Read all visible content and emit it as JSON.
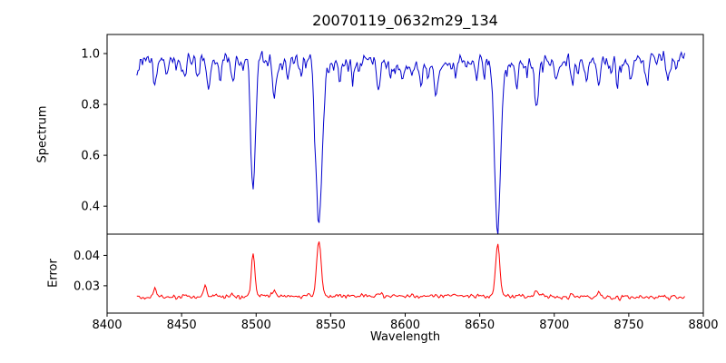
{
  "window": {
    "background": "#ffffff"
  },
  "chart_data": {
    "type": "line",
    "title": "20070119_0632m29_134",
    "xlabel": "Wavelength",
    "grid": false,
    "legend": null,
    "axis_color": "#000000",
    "xlim": [
      8400,
      8800
    ],
    "x_data_range": [
      8420,
      8788
    ],
    "x_ticks": {
      "values": [
        8400,
        8450,
        8500,
        8550,
        8600,
        8650,
        8700,
        8750,
        8800
      ],
      "labels": [
        "8400",
        "8450",
        "8500",
        "8550",
        "8600",
        "8650",
        "8700",
        "8750",
        "8800"
      ]
    },
    "seed": 20070119,
    "panels": [
      {
        "name": "spectrum",
        "ylabel": "Spectrum",
        "line_color": "#0000cd",
        "ylim": [
          0.29,
          1.075
        ],
        "y_ticks": {
          "values": [
            0.4,
            0.6,
            0.8,
            1.0
          ],
          "labels": [
            "0.4",
            "0.6",
            "0.8",
            "1.0"
          ]
        },
        "continuum_level": 0.965,
        "noise_sigma": 0.02,
        "absorption_lines": [
          {
            "center": 8498.0,
            "depth": 0.51,
            "width": 1.5
          },
          {
            "center": 8542.1,
            "depth": 0.64,
            "width": 2.2
          },
          {
            "center": 8662.1,
            "depth": 0.63,
            "width": 2.0
          },
          {
            "center": 8432,
            "depth": 0.1,
            "width": 1.0
          },
          {
            "center": 8440,
            "depth": 0.06,
            "width": 0.9
          },
          {
            "center": 8452,
            "depth": 0.08,
            "width": 0.9
          },
          {
            "center": 8461,
            "depth": 0.07,
            "width": 0.9
          },
          {
            "center": 8468,
            "depth": 0.11,
            "width": 1.0
          },
          {
            "center": 8476,
            "depth": 0.06,
            "width": 0.9
          },
          {
            "center": 8484,
            "depth": 0.07,
            "width": 0.9
          },
          {
            "center": 8512,
            "depth": 0.14,
            "width": 1.1
          },
          {
            "center": 8521,
            "depth": 0.07,
            "width": 0.9
          },
          {
            "center": 8530,
            "depth": 0.06,
            "width": 0.9
          },
          {
            "center": 8556,
            "depth": 0.07,
            "width": 0.9
          },
          {
            "center": 8565,
            "depth": 0.06,
            "width": 0.9
          },
          {
            "center": 8582,
            "depth": 0.09,
            "width": 1.0
          },
          {
            "center": 8590,
            "depth": 0.06,
            "width": 0.9
          },
          {
            "center": 8598,
            "depth": 0.08,
            "width": 0.9
          },
          {
            "center": 8611,
            "depth": 0.07,
            "width": 0.9
          },
          {
            "center": 8621,
            "depth": 0.1,
            "width": 1.0
          },
          {
            "center": 8634,
            "depth": 0.06,
            "width": 0.9
          },
          {
            "center": 8648,
            "depth": 0.08,
            "width": 0.9
          },
          {
            "center": 8674,
            "depth": 0.07,
            "width": 0.9
          },
          {
            "center": 8688,
            "depth": 0.18,
            "width": 1.2
          },
          {
            "center": 8702,
            "depth": 0.06,
            "width": 0.9
          },
          {
            "center": 8712,
            "depth": 0.09,
            "width": 1.0
          },
          {
            "center": 8722,
            "depth": 0.06,
            "width": 0.9
          },
          {
            "center": 8730,
            "depth": 0.1,
            "width": 1.0
          },
          {
            "center": 8742,
            "depth": 0.07,
            "width": 0.9
          },
          {
            "center": 8752,
            "depth": 0.06,
            "width": 0.9
          },
          {
            "center": 8762,
            "depth": 0.09,
            "width": 1.0
          },
          {
            "center": 8776,
            "depth": 0.07,
            "width": 0.9
          }
        ]
      },
      {
        "name": "error",
        "ylabel": "Error",
        "line_color": "#ff0000",
        "ylim": [
          0.021,
          0.047
        ],
        "y_ticks": {
          "values": [
            0.03,
            0.04
          ],
          "labels": [
            "0.03",
            "0.04"
          ]
        },
        "baseline_level": 0.0263,
        "noise_sigma": 0.0004,
        "peaks": [
          {
            "center": 8498.0,
            "height": 0.014,
            "width": 1.2
          },
          {
            "center": 8542.1,
            "height": 0.0185,
            "width": 1.5
          },
          {
            "center": 8662.1,
            "height": 0.0172,
            "width": 1.4
          },
          {
            "center": 8432,
            "height": 0.003,
            "width": 1.0
          },
          {
            "center": 8466,
            "height": 0.0032,
            "width": 1.0
          },
          {
            "center": 8512,
            "height": 0.002,
            "width": 1.0
          },
          {
            "center": 8582,
            "height": 0.0012,
            "width": 0.9
          },
          {
            "center": 8688,
            "height": 0.0026,
            "width": 1.1
          },
          {
            "center": 8712,
            "height": 0.0011,
            "width": 0.9
          },
          {
            "center": 8730,
            "height": 0.0013,
            "width": 0.9
          }
        ]
      }
    ]
  }
}
